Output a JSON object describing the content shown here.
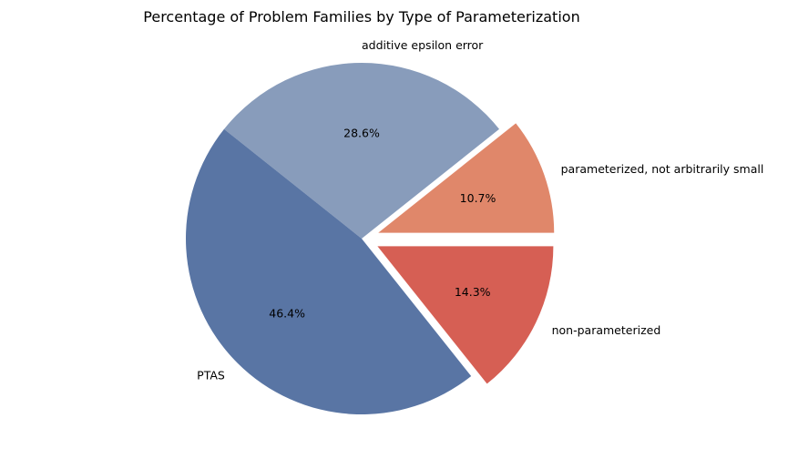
{
  "chart_data": {
    "type": "pie",
    "title": "Percentage of Problem Families by Type of Parameterization",
    "slices": [
      {
        "label": "parameterized, not arbitrarily small",
        "value": 10.7,
        "pct_label": "10.7%",
        "color": "#e0876a",
        "exploded": true
      },
      {
        "label": "additive epsilon error",
        "value": 28.6,
        "pct_label": "28.6%",
        "color": "#889cbb",
        "exploded": false
      },
      {
        "label": "PTAS",
        "value": 46.4,
        "pct_label": "46.4%",
        "color": "#5975a4",
        "exploded": false
      },
      {
        "label": "non-parameterized",
        "value": 14.3,
        "pct_label": "14.3%",
        "color": "#d65f54",
        "exploded": true
      }
    ],
    "start_angle_deg": 0,
    "direction": "counterclockwise"
  }
}
